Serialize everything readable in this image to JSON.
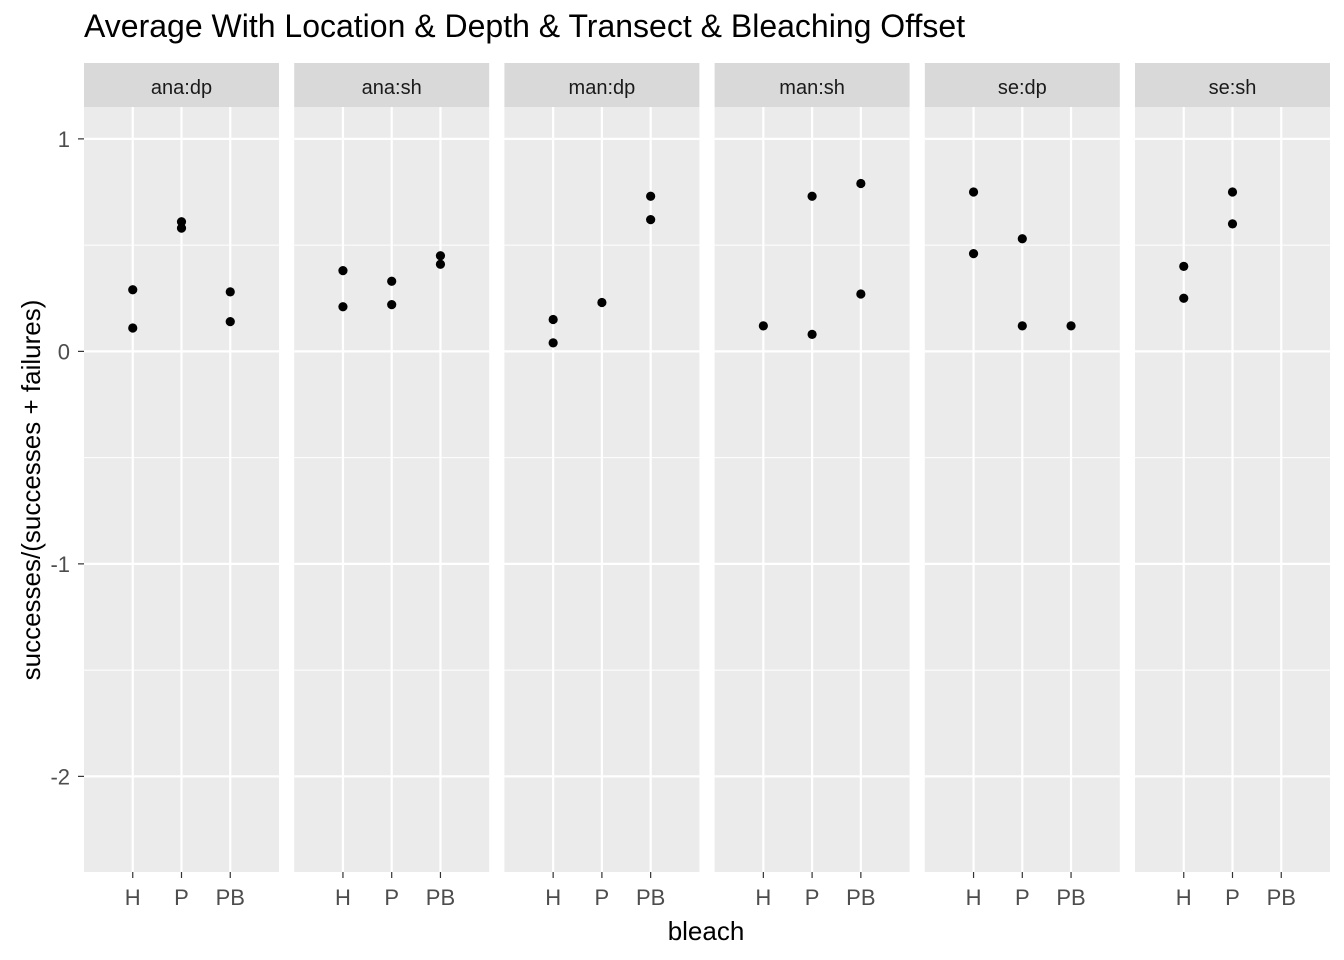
{
  "chart_data": {
    "type": "scatter",
    "title": "Average With Location & Depth & Transect & Bleaching Offset",
    "xlabel": "bleach",
    "ylabel": "successes/(successes + failures)",
    "categories": [
      "H",
      "P",
      "PB"
    ],
    "ylim": [
      -2.45,
      1.15
    ],
    "yticks": [
      1,
      0,
      -1,
      -2
    ],
    "ytick_labels": [
      "1",
      "0",
      "-1",
      "-2"
    ],
    "grid": true,
    "panel_background": "#ebebeb",
    "strip_background": "#d9d9d9",
    "point_color": "#000000",
    "facets": [
      {
        "label": "ana:dp",
        "points": [
          {
            "x": "H",
            "y": 0.29
          },
          {
            "x": "H",
            "y": 0.11
          },
          {
            "x": "P",
            "y": 0.61
          },
          {
            "x": "P",
            "y": 0.58
          },
          {
            "x": "PB",
            "y": 0.28
          },
          {
            "x": "PB",
            "y": 0.14
          }
        ]
      },
      {
        "label": "ana:sh",
        "points": [
          {
            "x": "H",
            "y": 0.38
          },
          {
            "x": "H",
            "y": 0.21
          },
          {
            "x": "P",
            "y": 0.33
          },
          {
            "x": "P",
            "y": 0.22
          },
          {
            "x": "PB",
            "y": 0.45
          },
          {
            "x": "PB",
            "y": 0.41
          }
        ]
      },
      {
        "label": "man:dp",
        "points": [
          {
            "x": "H",
            "y": 0.15
          },
          {
            "x": "H",
            "y": 0.04
          },
          {
            "x": "P",
            "y": 0.23
          },
          {
            "x": "PB",
            "y": 0.73
          },
          {
            "x": "PB",
            "y": 0.62
          }
        ]
      },
      {
        "label": "man:sh",
        "points": [
          {
            "x": "H",
            "y": 0.12
          },
          {
            "x": "P",
            "y": 0.73
          },
          {
            "x": "P",
            "y": 0.08
          },
          {
            "x": "PB",
            "y": 0.79
          },
          {
            "x": "PB",
            "y": 0.27
          }
        ]
      },
      {
        "label": "se:dp",
        "points": [
          {
            "x": "H",
            "y": 0.75
          },
          {
            "x": "H",
            "y": 0.46
          },
          {
            "x": "P",
            "y": 0.53
          },
          {
            "x": "P",
            "y": 0.12
          },
          {
            "x": "PB",
            "y": 0.12
          }
        ]
      },
      {
        "label": "se:sh",
        "points": [
          {
            "x": "H",
            "y": 0.4
          },
          {
            "x": "H",
            "y": 0.25
          },
          {
            "x": "P",
            "y": 0.75
          },
          {
            "x": "P",
            "y": 0.6
          }
        ]
      }
    ]
  }
}
